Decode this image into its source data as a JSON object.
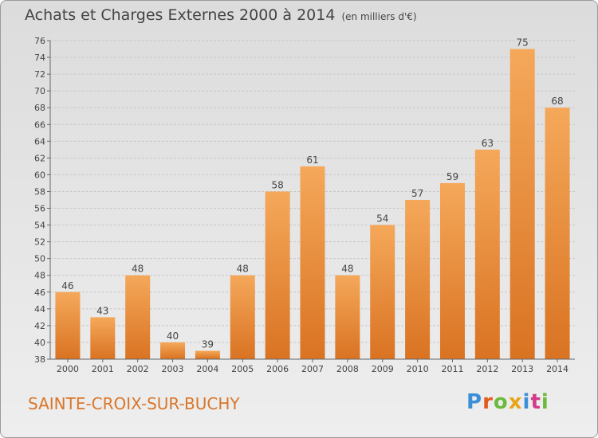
{
  "header": {
    "title": "Achats et Charges Externes 2000 à 2014",
    "subtitle": "(en milliers d'€)"
  },
  "footer": {
    "commune": "SAINTE-CROIX-SUR-BUCHY",
    "logo_text": "Proxiti",
    "logo_colors": [
      "#3a8fd6",
      "#e35a1c",
      "#6cba3c",
      "#e8a418",
      "#3a8fd6",
      "#d43a8a",
      "#6cba3c"
    ]
  },
  "colors": {
    "bar_light": "#f5a85a",
    "bar_dark": "#d97322",
    "grid": "#c8c8c8",
    "axis_text": "#444444"
  },
  "chart_data": {
    "type": "bar",
    "title": "Achats et Charges Externes 2000 à 2014",
    "subtitle": "(en milliers d'€)",
    "categories": [
      "2000",
      "2001",
      "2002",
      "2003",
      "2004",
      "2005",
      "2006",
      "2007",
      "2008",
      "2009",
      "2010",
      "2011",
      "2012",
      "2013",
      "2014"
    ],
    "values": [
      46,
      43,
      48,
      40,
      39,
      48,
      58,
      61,
      48,
      54,
      57,
      59,
      63,
      75,
      68
    ],
    "ylim": [
      38,
      76
    ],
    "ytick_step": 2,
    "grid": true,
    "data_labels": true
  }
}
